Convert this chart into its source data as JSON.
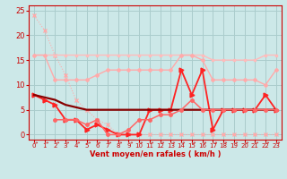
{
  "xlabel": "Vent moyen/en rafales ( km/h )",
  "xlim": [
    -0.5,
    23.5
  ],
  "ylim": [
    -1,
    26
  ],
  "yticks": [
    0,
    5,
    10,
    15,
    20,
    25
  ],
  "xticks": [
    0,
    1,
    2,
    3,
    4,
    5,
    6,
    7,
    8,
    9,
    10,
    11,
    12,
    13,
    14,
    15,
    16,
    17,
    18,
    19,
    20,
    21,
    22,
    23
  ],
  "bg_color": "#cce8e8",
  "grid_color": "#aacccc",
  "series": [
    {
      "y": [
        24,
        21,
        16,
        12,
        7,
        5,
        3,
        2,
        0,
        0,
        0,
        0,
        0,
        0,
        0,
        0,
        0,
        0,
        0,
        0,
        0,
        0,
        0,
        0
      ],
      "color": "#ffaaaa",
      "lw": 0.8,
      "marker": "x",
      "ms": 3,
      "ls": ":"
    },
    {
      "y": [
        16,
        16,
        16,
        16,
        16,
        16,
        16,
        16,
        16,
        16,
        16,
        16,
        16,
        16,
        16,
        16,
        16,
        15,
        15,
        15,
        15,
        15,
        16,
        16
      ],
      "color": "#ffbbbb",
      "lw": 1.0,
      "marker": "s",
      "ms": 2,
      "ls": "-"
    },
    {
      "y": [
        16,
        16,
        11,
        11,
        11,
        11,
        12,
        13,
        13,
        13,
        13,
        13,
        13,
        13,
        16,
        16,
        15,
        11,
        11,
        11,
        11,
        11,
        10,
        13
      ],
      "color": "#ffaaaa",
      "lw": 1.0,
      "marker": "D",
      "ms": 2,
      "ls": "-"
    },
    {
      "y": [
        8,
        7,
        6,
        3,
        3,
        1,
        2,
        1,
        0,
        0,
        0,
        5,
        5,
        5,
        13,
        8,
        13,
        1,
        5,
        5,
        5,
        5,
        8,
        5
      ],
      "color": "#ff2222",
      "lw": 1.3,
      "marker": ">",
      "ms": 3.5,
      "ls": "-"
    },
    {
      "y": [
        8,
        7.5,
        7,
        6,
        5.5,
        5,
        5,
        5,
        5,
        5,
        5,
        5,
        5,
        5,
        5,
        5,
        5,
        5,
        5,
        5,
        5,
        5,
        5,
        5
      ],
      "color": "#880000",
      "lw": 1.6,
      "marker": null,
      "ms": 0,
      "ls": "-"
    },
    {
      "y": [
        null,
        null,
        3,
        3,
        3,
        2,
        3,
        0,
        0,
        1,
        3,
        3,
        4,
        4,
        5,
        7,
        5,
        5,
        5,
        5,
        5,
        5,
        5,
        5
      ],
      "color": "#ff6666",
      "lw": 1.1,
      "marker": "o",
      "ms": 2.5,
      "ls": "-"
    }
  ]
}
